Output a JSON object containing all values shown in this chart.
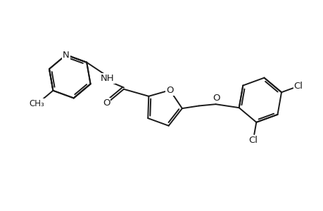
{
  "bg_color": "#ffffff",
  "line_color": "#1a1a1a",
  "line_width": 1.4,
  "font_size": 9.5,
  "fig_width": 4.6,
  "fig_height": 3.0,
  "dpi": 100,
  "xlim": [
    0,
    10
  ],
  "ylim": [
    0,
    6.5
  ]
}
